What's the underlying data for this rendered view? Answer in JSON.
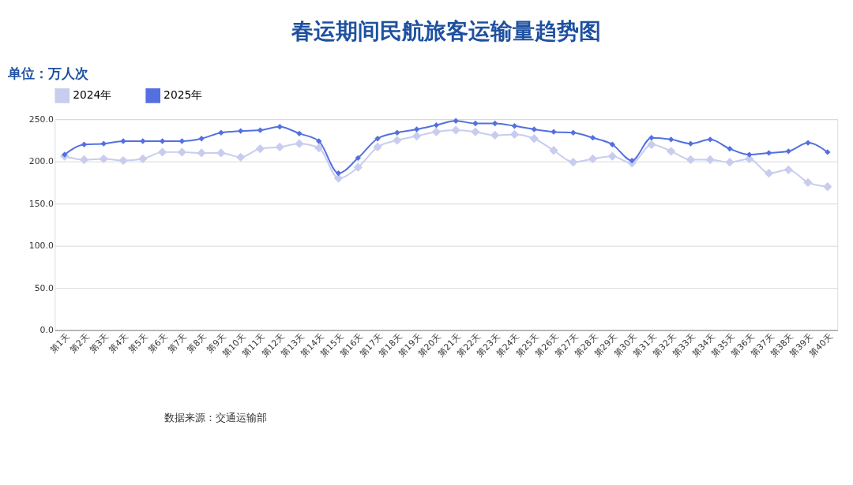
{
  "chart_data": {
    "type": "line",
    "title": "春运期间民航旅客运输量趋势图",
    "ylabel": "单位：万人次",
    "categories": [
      "第1天",
      "第2天",
      "第3天",
      "第4天",
      "第5天",
      "第6天",
      "第7天",
      "第8天",
      "第9天",
      "第10天",
      "第11天",
      "第12天",
      "第13天",
      "第14天",
      "第15天",
      "第16天",
      "第17天",
      "第18天",
      "第19天",
      "第20天",
      "第21天",
      "第22天",
      "第23天",
      "第24天",
      "第25天",
      "第26天",
      "第27天",
      "第28天",
      "第29天",
      "第30天",
      "第31天",
      "第32天",
      "第33天",
      "第34天",
      "第35天",
      "第36天",
      "第37天",
      "第38天",
      "第39天",
      "第40天"
    ],
    "series": [
      {
        "name": "2024年",
        "color": "#c8cdee",
        "values": [
          206,
          202,
          203,
          201,
          203,
          211,
          211,
          210,
          210,
          205,
          215,
          217,
          221,
          216,
          180,
          193,
          217,
          225,
          230,
          235,
          237,
          235,
          231,
          232,
          227,
          213,
          199,
          203,
          206,
          198,
          220,
          212,
          202,
          202,
          199,
          203,
          186,
          190,
          175,
          170
        ]
      },
      {
        "name": "2025年",
        "color": "#5470e0",
        "values": [
          208,
          220,
          221,
          224,
          224,
          224,
          224,
          227,
          234,
          236,
          237,
          241,
          233,
          224,
          186,
          204,
          227,
          234,
          238,
          243,
          248,
          245,
          245,
          242,
          238,
          235,
          234,
          228,
          220,
          201,
          228,
          226,
          221,
          226,
          215,
          208,
          210,
          212,
          222,
          211
        ]
      }
    ],
    "ylim": [
      0,
      250
    ],
    "yticks": [
      {
        "value": 0,
        "label": "0.0"
      },
      {
        "value": 50,
        "label": "50.0"
      },
      {
        "value": 100,
        "label": "100.0"
      },
      {
        "value": 150,
        "label": "150.0"
      },
      {
        "value": 200,
        "label": "200.0"
      },
      {
        "value": 250,
        "label": "250.0"
      }
    ],
    "grid": "y",
    "legend": "top",
    "marker": "diamond",
    "line_style": "solid",
    "annotations": [
      "数据来源：交通运输部"
    ]
  }
}
